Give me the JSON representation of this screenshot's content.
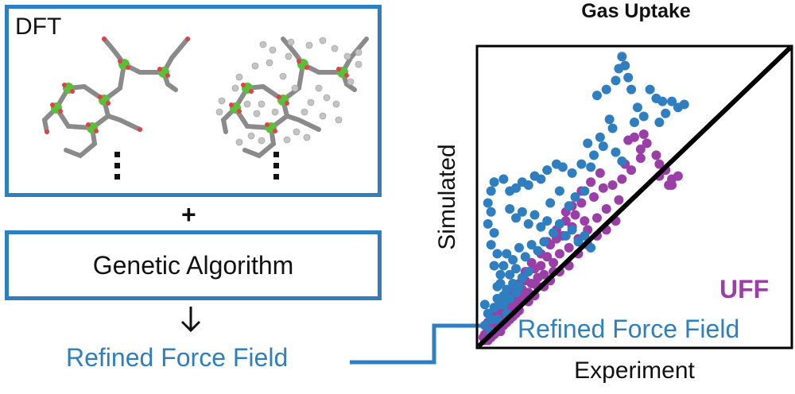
{
  "left_panel": {
    "dft_label": "DFT",
    "plus_sign": "+",
    "ga_label": "Genetic Algorithm",
    "output_label": "Refined Force Field"
  },
  "colors": {
    "frame_blue": "#2f7fc0",
    "uff_purple": "#9b3fa8",
    "rff_blue": "#2f7fc0"
  },
  "icons": [
    "mof-framework-icon",
    "mof-framework-with-gas-icon",
    "vertical-ellipsis-icon",
    "down-arrow-icon",
    "connector-arrow-icon"
  ],
  "chart_data": {
    "type": "scatter",
    "title": "Gas Uptake",
    "xlabel": "Experiment",
    "ylabel": "Simulated",
    "xlim": [
      0,
      1
    ],
    "ylim": [
      0,
      1
    ],
    "grid": false,
    "parity_line": true,
    "series": [
      {
        "name": "UFF",
        "color": "#9b3fa8",
        "values": [
          [
            0.5,
            0.7
          ],
          [
            0.48,
            0.69
          ],
          [
            0.52,
            0.66
          ],
          [
            0.53,
            0.71
          ],
          [
            0.54,
            0.68
          ],
          [
            0.47,
            0.61
          ],
          [
            0.49,
            0.59
          ],
          [
            0.43,
            0.54
          ],
          [
            0.46,
            0.56
          ],
          [
            0.52,
            0.63
          ],
          [
            0.58,
            0.61
          ],
          [
            0.6,
            0.59
          ],
          [
            0.62,
            0.56
          ],
          [
            0.64,
            0.57
          ],
          [
            0.57,
            0.64
          ],
          [
            0.58,
            0.57
          ],
          [
            0.61,
            0.54
          ],
          [
            0.62,
            0.54
          ],
          [
            0.36,
            0.55
          ],
          [
            0.37,
            0.5
          ],
          [
            0.4,
            0.53
          ],
          [
            0.33,
            0.48
          ],
          [
            0.31,
            0.44
          ],
          [
            0.34,
            0.42
          ],
          [
            0.3,
            0.4
          ],
          [
            0.28,
            0.42
          ],
          [
            0.27,
            0.37
          ],
          [
            0.25,
            0.36
          ],
          [
            0.23,
            0.34
          ],
          [
            0.22,
            0.3
          ],
          [
            0.24,
            0.28
          ],
          [
            0.2,
            0.27
          ],
          [
            0.18,
            0.26
          ],
          [
            0.19,
            0.23
          ],
          [
            0.17,
            0.21
          ],
          [
            0.15,
            0.22
          ],
          [
            0.14,
            0.19
          ],
          [
            0.13,
            0.17
          ],
          [
            0.12,
            0.15
          ],
          [
            0.11,
            0.14
          ],
          [
            0.1,
            0.13
          ],
          [
            0.09,
            0.12
          ],
          [
            0.08,
            0.1
          ],
          [
            0.07,
            0.09
          ],
          [
            0.06,
            0.08
          ],
          [
            0.05,
            0.07
          ],
          [
            0.04,
            0.06
          ],
          [
            0.03,
            0.05
          ],
          [
            0.02,
            0.04
          ],
          [
            0.015,
            0.03
          ],
          [
            0.03,
            0.02
          ],
          [
            0.05,
            0.04
          ],
          [
            0.07,
            0.05
          ],
          [
            0.09,
            0.08
          ],
          [
            0.11,
            0.1
          ],
          [
            0.13,
            0.12
          ],
          [
            0.16,
            0.15
          ],
          [
            0.18,
            0.17
          ],
          [
            0.21,
            0.2
          ],
          [
            0.23,
            0.22
          ],
          [
            0.26,
            0.25
          ],
          [
            0.29,
            0.27
          ],
          [
            0.32,
            0.31
          ],
          [
            0.35,
            0.34
          ],
          [
            0.38,
            0.37
          ],
          [
            0.41,
            0.39
          ],
          [
            0.44,
            0.42
          ],
          [
            0.45,
            0.49
          ],
          [
            0.41,
            0.46
          ],
          [
            0.38,
            0.43
          ],
          [
            0.35,
            0.39
          ],
          [
            0.32,
            0.36
          ],
          [
            0.29,
            0.33
          ],
          [
            0.26,
            0.31
          ],
          [
            0.24,
            0.25
          ],
          [
            0.21,
            0.24
          ],
          [
            0.19,
            0.2
          ],
          [
            0.16,
            0.18
          ],
          [
            0.14,
            0.16
          ],
          [
            0.12,
            0.11
          ],
          [
            0.1,
            0.09
          ],
          [
            0.08,
            0.07
          ],
          [
            0.06,
            0.06
          ],
          [
            0.04,
            0.03
          ],
          [
            0.02,
            0.02
          ],
          [
            0.03,
            0.08
          ],
          [
            0.05,
            0.1
          ],
          [
            0.07,
            0.12
          ],
          [
            0.09,
            0.15
          ],
          [
            0.11,
            0.18
          ],
          [
            0.13,
            0.21
          ],
          [
            0.15,
            0.25
          ],
          [
            0.17,
            0.28
          ],
          [
            0.2,
            0.31
          ],
          [
            0.22,
            0.35
          ],
          [
            0.25,
            0.39
          ],
          [
            0.28,
            0.45
          ],
          [
            0.3,
            0.47
          ],
          [
            0.33,
            0.52
          ],
          [
            0.39,
            0.58
          ]
        ]
      },
      {
        "name": "Refined Force Field",
        "color": "#2f7fc0",
        "values": [
          [
            0.46,
            0.97
          ],
          [
            0.47,
            0.94
          ],
          [
            0.45,
            0.93
          ],
          [
            0.48,
            0.9
          ],
          [
            0.44,
            0.89
          ],
          [
            0.38,
            0.84
          ],
          [
            0.41,
            0.86
          ],
          [
            0.55,
            0.86
          ],
          [
            0.57,
            0.83
          ],
          [
            0.59,
            0.82
          ],
          [
            0.62,
            0.82
          ],
          [
            0.64,
            0.8
          ],
          [
            0.66,
            0.81
          ],
          [
            0.6,
            0.78
          ],
          [
            0.58,
            0.75
          ],
          [
            0.53,
            0.77
          ],
          [
            0.42,
            0.76
          ],
          [
            0.43,
            0.73
          ],
          [
            0.39,
            0.7
          ],
          [
            0.4,
            0.67
          ],
          [
            0.35,
            0.68
          ],
          [
            0.37,
            0.64
          ],
          [
            0.36,
            0.6
          ],
          [
            0.33,
            0.61
          ],
          [
            0.3,
            0.58
          ],
          [
            0.27,
            0.6
          ],
          [
            0.25,
            0.61
          ],
          [
            0.22,
            0.59
          ],
          [
            0.2,
            0.56
          ],
          [
            0.18,
            0.57
          ],
          [
            0.16,
            0.54
          ],
          [
            0.14,
            0.55
          ],
          [
            0.12,
            0.53
          ],
          [
            0.1,
            0.52
          ],
          [
            0.08,
            0.56
          ],
          [
            0.05,
            0.55
          ],
          [
            0.04,
            0.52
          ],
          [
            0.03,
            0.48
          ],
          [
            0.04,
            0.45
          ],
          [
            0.03,
            0.41
          ],
          [
            0.05,
            0.38
          ],
          [
            0.04,
            0.34
          ],
          [
            0.06,
            0.31
          ],
          [
            0.05,
            0.27
          ],
          [
            0.07,
            0.24
          ],
          [
            0.06,
            0.2
          ],
          [
            0.08,
            0.17
          ],
          [
            0.07,
            0.14
          ],
          [
            0.09,
            0.11
          ],
          [
            0.04,
            0.09
          ],
          [
            0.1,
            0.46
          ],
          [
            0.12,
            0.43
          ],
          [
            0.14,
            0.45
          ],
          [
            0.16,
            0.41
          ],
          [
            0.18,
            0.44
          ],
          [
            0.2,
            0.4
          ],
          [
            0.22,
            0.42
          ],
          [
            0.24,
            0.38
          ],
          [
            0.26,
            0.41
          ],
          [
            0.28,
            0.37
          ],
          [
            0.3,
            0.39
          ],
          [
            0.32,
            0.35
          ],
          [
            0.34,
            0.37
          ],
          [
            0.36,
            0.33
          ],
          [
            0.21,
            0.35
          ],
          [
            0.19,
            0.32
          ],
          [
            0.17,
            0.34
          ],
          [
            0.15,
            0.3
          ],
          [
            0.13,
            0.33
          ],
          [
            0.11,
            0.29
          ],
          [
            0.09,
            0.31
          ],
          [
            0.08,
            0.27
          ],
          [
            0.1,
            0.24
          ],
          [
            0.12,
            0.26
          ],
          [
            0.14,
            0.23
          ],
          [
            0.16,
            0.25
          ],
          [
            0.13,
            0.2
          ],
          [
            0.11,
            0.21
          ],
          [
            0.09,
            0.19
          ],
          [
            0.07,
            0.21
          ],
          [
            0.06,
            0.16
          ],
          [
            0.05,
            0.13
          ],
          [
            0.08,
            0.14
          ],
          [
            0.1,
            0.16
          ],
          [
            0.12,
            0.18
          ],
          [
            0.03,
            0.11
          ],
          [
            0.02,
            0.07
          ],
          [
            0.04,
            0.05
          ],
          [
            0.06,
            0.09
          ],
          [
            0.02,
            0.14
          ],
          [
            0.44,
            0.65
          ],
          [
            0.46,
            0.62
          ],
          [
            0.34,
            0.52
          ],
          [
            0.31,
            0.5
          ],
          [
            0.29,
            0.47
          ],
          [
            0.23,
            0.48
          ],
          [
            0.26,
            0.52
          ],
          [
            0.49,
            0.86
          ],
          [
            0.51,
            0.8
          ],
          [
            0.5,
            0.75
          ]
        ]
      }
    ]
  },
  "legend": {
    "uff": "UFF",
    "rff": "Refined Force Field"
  }
}
